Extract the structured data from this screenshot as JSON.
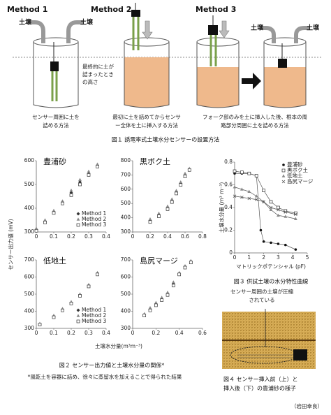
{
  "figure1": {
    "methods": [
      {
        "label": "Method 1",
        "soil_labels": [
          "土壌",
          "土壌"
        ],
        "caption": [
          "センサー周囲に土を",
          "詰める方法"
        ]
      },
      {
        "label": "Method 2",
        "caption": [
          "最初に土を詰めてからセンサ",
          "ー全体を土に挿入する方法"
        ]
      },
      {
        "label": "Method 3",
        "soil_labels": [
          "土壌",
          "土壌"
        ],
        "caption": [
          "フォーク部のみを土に挿入した後、根本の周",
          "路部分周囲に土を詰める方法"
        ]
      }
    ],
    "annotation": [
      "最終的に土が",
      "詰まったとき",
      "の高さ"
    ],
    "caption": "図１ 誘電率式土壌水分センサーの設置方法"
  },
  "figure2": {
    "y_label": "センサー出力値 (mV)",
    "x_label": "土壌水分量(m³m⁻³)",
    "panels": [
      {
        "title": "豊浦砂",
        "xlim": [
          0,
          0.4
        ],
        "xticks": [
          0,
          0.1,
          0.2,
          0.3,
          0.4
        ],
        "ylim": [
          300,
          600
        ],
        "yticks": [
          300,
          400,
          500,
          600
        ],
        "series": [
          {
            "name": "Method 1",
            "x": [
              0,
              0.05,
              0.1,
              0.15,
              0.2,
              0.25,
              0.3,
              0.35
            ],
            "y": [
              310,
              345,
              385,
              425,
              465,
              510,
              545,
              580
            ]
          },
          {
            "name": "Method 2",
            "x": [
              0,
              0.05,
              0.1,
              0.15,
              0.2,
              0.25,
              0.3,
              0.35
            ],
            "y": [
              315,
              350,
              390,
              430,
              475,
              520,
              555,
              585
            ]
          },
          {
            "name": "Method 3",
            "x": [
              0,
              0.05,
              0.1,
              0.15,
              0.2,
              0.25,
              0.3,
              0.35
            ],
            "y": [
              305,
              340,
              380,
              420,
              455,
              500,
              540,
              575
            ]
          }
        ]
      },
      {
        "title": "黒ボク土",
        "xlim": [
          0,
          0.8
        ],
        "xticks": [
          0,
          0.2,
          0.4,
          0.6,
          0.8
        ],
        "ylim": [
          300,
          800
        ],
        "yticks": [
          300,
          400,
          500,
          600,
          700,
          800
        ],
        "series": [
          {
            "x": [
              0.2,
              0.3,
              0.4,
              0.45,
              0.5,
              0.55,
              0.6,
              0.65
            ],
            "y": [
              380,
              420,
              470,
              520,
              580,
              640,
              700,
              740
            ]
          },
          {
            "x": [
              0.2,
              0.3,
              0.4,
              0.45,
              0.5,
              0.55,
              0.6,
              0.65
            ],
            "y": [
              390,
              430,
              480,
              530,
              590,
              650,
              710,
              745
            ]
          },
          {
            "x": [
              0.2,
              0.3,
              0.4,
              0.45,
              0.5,
              0.55,
              0.6,
              0.65
            ],
            "y": [
              370,
              410,
              460,
              510,
              570,
              630,
              690,
              735
            ]
          }
        ]
      },
      {
        "title": "低地土",
        "xlim": [
          0,
          0.4
        ],
        "xticks": [
          0,
          0.1,
          0.2,
          0.3,
          0.4
        ],
        "ylim": [
          300,
          700
        ],
        "yticks": [
          300,
          400,
          500,
          600,
          700
        ],
        "series": [
          {
            "name": "Method 1",
            "x": [
              0.02,
              0.1,
              0.15,
              0.2,
              0.25,
              0.3,
              0.35
            ],
            "y": [
              325,
              370,
              410,
              450,
              495,
              550,
              620
            ]
          },
          {
            "name": "Method 2",
            "x": [
              0.02,
              0.1,
              0.15,
              0.2,
              0.25,
              0.3,
              0.35
            ],
            "y": [
              328,
              375,
              415,
              455,
              500,
              555,
              625
            ]
          },
          {
            "name": "Method 3",
            "x": [
              0.02,
              0.1,
              0.15,
              0.2,
              0.25,
              0.3,
              0.35
            ],
            "y": [
              322,
              365,
              405,
              445,
              490,
              545,
              615
            ]
          }
        ]
      },
      {
        "title": "島尻マージ",
        "xlim": [
          0,
          0.6
        ],
        "xticks": [
          0,
          0.2,
          0.4,
          0.6
        ],
        "ylim": [
          300,
          700
        ],
        "yticks": [
          300,
          400,
          500,
          600,
          700
        ],
        "series": [
          {
            "x": [
              0.1,
              0.15,
              0.2,
              0.25,
              0.3,
              0.35,
              0.4,
              0.45,
              0.5
            ],
            "y": [
              380,
              410,
              440,
              470,
              500,
              560,
              620,
              660,
              690
            ]
          },
          {
            "x": [
              0.1,
              0.15,
              0.2,
              0.25,
              0.3,
              0.35,
              0.4,
              0.45,
              0.5
            ],
            "y": [
              385,
              420,
              450,
              480,
              510,
              570,
              625,
              665,
              695
            ]
          },
          {
            "x": [
              0.1,
              0.15,
              0.2,
              0.25,
              0.3,
              0.35,
              0.4,
              0.45,
              0.5
            ],
            "y": [
              375,
              405,
              435,
              465,
              495,
              550,
              615,
              655,
              685
            ]
          }
        ]
      }
    ],
    "caption": "図２ センサー出力値と土壌水分量の関係*",
    "note": "*風乾土を容器に詰め、徐々に蒸留水を加えることで得られた結果"
  },
  "figure3": {
    "y_label": "土壌水分量 (m³ m⁻³)",
    "x_label": "マトリックポテンシャル (pF)",
    "xlim": [
      0,
      5
    ],
    "xticks": [
      0,
      1,
      2,
      3,
      4,
      5
    ],
    "ylim": [
      0,
      0.8
    ],
    "yticks": [
      0,
      0.2,
      0.4,
      0.6,
      0.8
    ],
    "series": [
      {
        "name": "豊浦砂",
        "x": [
          0,
          0.5,
          1,
          1.5,
          1.8,
          2,
          2.5,
          3,
          3.5,
          4.2
        ],
        "y": [
          0.7,
          0.7,
          0.7,
          0.68,
          0.2,
          0.1,
          0.09,
          0.08,
          0.07,
          0.03
        ]
      },
      {
        "name": "黒ボク土",
        "x": [
          0,
          0.5,
          1,
          1.5,
          2,
          2.5,
          3,
          3.5,
          4.2
        ],
        "y": [
          0.72,
          0.71,
          0.7,
          0.68,
          0.55,
          0.45,
          0.4,
          0.37,
          0.35
        ]
      },
      {
        "name": "低地土",
        "x": [
          0,
          0.5,
          1,
          1.5,
          2,
          2.5,
          3,
          3.5,
          4.2
        ],
        "y": [
          0.58,
          0.56,
          0.54,
          0.5,
          0.45,
          0.38,
          0.33,
          0.32,
          0.3
        ]
      },
      {
        "name": "島尻マージ",
        "x": [
          0,
          0.5,
          1,
          1.5,
          2,
          2.5,
          3,
          3.5,
          4.2
        ],
        "y": [
          0.5,
          0.49,
          0.48,
          0.47,
          0.45,
          0.4,
          0.38,
          0.36,
          0.34
        ]
      }
    ],
    "caption": "図３ 供試土壌の水分特性曲線"
  },
  "figure4": {
    "annotation": [
      "センサー周囲の土壌が圧縮",
      "されている"
    ],
    "caption": [
      "図４ センサー挿入前（上）と",
      "挿入後（下）の豊浦砂の様子"
    ]
  },
  "author": "（岩田幸良）"
}
